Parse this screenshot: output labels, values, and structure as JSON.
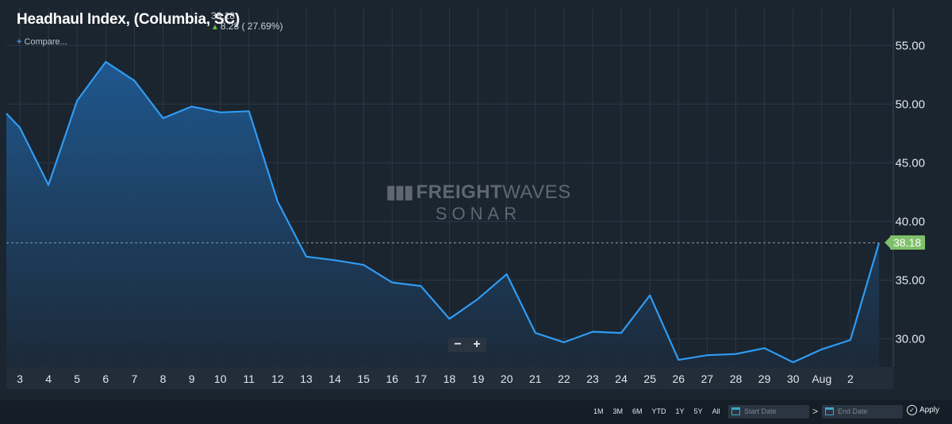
{
  "header": {
    "title": "Headhaul Index, (Columbia, SC)",
    "current_value": "38.18",
    "change_text": "8.28 ( 27.69%)",
    "change_direction": "up",
    "compare_label": "Compare..."
  },
  "watermark": {
    "brand_bold": "FREIGHT",
    "brand_light": "WAVES",
    "product": "SONAR"
  },
  "zoom_controls": {
    "minus": "−",
    "plus": "+"
  },
  "footer": {
    "ranges": [
      "1M",
      "3M",
      "6M",
      "YTD",
      "1Y",
      "5Y",
      "All"
    ],
    "start_placeholder": "Start Date",
    "end_placeholder": "End Date",
    "separator": ">",
    "apply_label": "Apply",
    "apply_icon": "✓"
  },
  "colors": {
    "line": "#2f9bf2",
    "area_top": "#1f5a93",
    "area_bottom": "#1c2a3a",
    "badge": "#7fc06b",
    "grid": "#2c3744",
    "background": "#1b2530"
  },
  "chart_data": {
    "type": "area",
    "title": "Headhaul Index, (Columbia, SC)",
    "x_tick_labels": [
      "3",
      "4",
      "5",
      "6",
      "7",
      "8",
      "9",
      "10",
      "11",
      "12",
      "13",
      "14",
      "15",
      "16",
      "17",
      "18",
      "19",
      "20",
      "21",
      "22",
      "23",
      "24",
      "25",
      "26",
      "27",
      "28",
      "29",
      "30",
      "Aug",
      "2"
    ],
    "y_ticks": [
      "55.00",
      "50.00",
      "45.00",
      "40.00",
      "35.00",
      "30.00"
    ],
    "ylim": [
      27.6,
      58.2
    ],
    "grid": true,
    "last_value_label": "38.18",
    "last_value": 38.18,
    "series": [
      {
        "x": [
          2.5,
          3,
          4,
          5,
          6,
          7,
          8,
          9,
          10,
          11,
          12,
          13,
          14,
          15,
          16,
          17,
          18,
          19,
          20,
          21,
          22,
          23,
          24,
          25,
          26,
          27,
          28,
          29,
          30,
          31,
          32,
          33
        ],
        "values": [
          49.2,
          48.0,
          43.1,
          50.3,
          53.6,
          52.0,
          48.8,
          49.8,
          49.3,
          49.4,
          41.7,
          37.0,
          36.7,
          36.3,
          34.8,
          34.5,
          31.7,
          33.4,
          35.5,
          30.5,
          29.7,
          30.6,
          30.5,
          33.7,
          28.2,
          28.6,
          28.7,
          29.2,
          28.0,
          29.1,
          29.9,
          38.18
        ]
      }
    ]
  }
}
